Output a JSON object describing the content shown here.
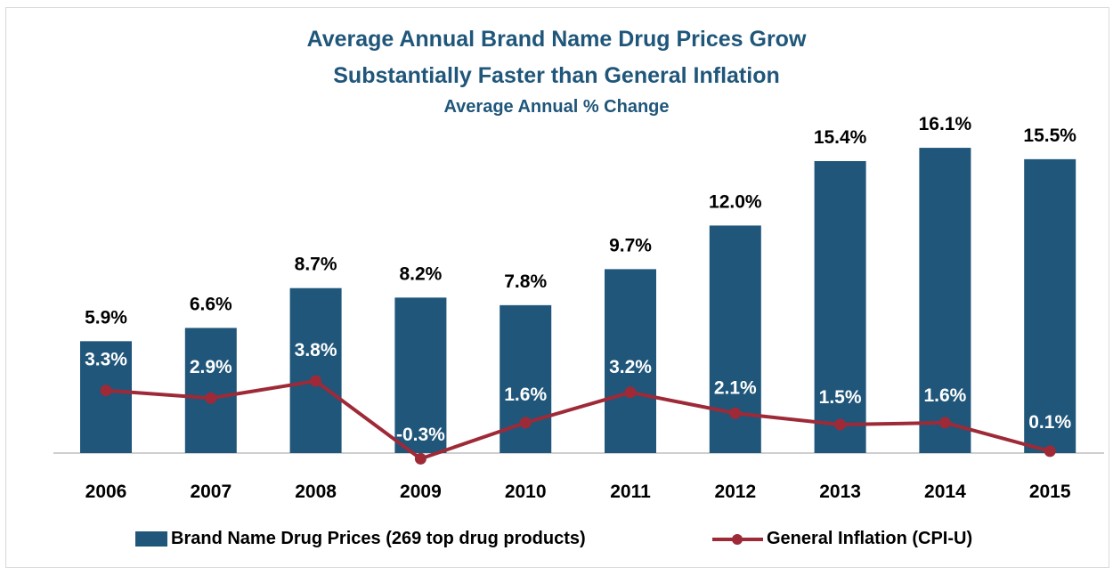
{
  "colors": {
    "bar": "#1f567a",
    "line": "#9e2a38",
    "title": "#1f567a",
    "axis": "#bfbfbf",
    "label_dark": "#000000",
    "label_light": "#ffffff"
  },
  "chart_data": {
    "type": "bar",
    "title": "Average Annual Brand Name Drug Prices Grow",
    "title_line2": "Substantially Faster than General Inflation",
    "subtitle": "Average Annual % Change",
    "categories": [
      "2006",
      "2007",
      "2008",
      "2009",
      "2010",
      "2011",
      "2012",
      "2013",
      "2014",
      "2015"
    ],
    "series": [
      {
        "name": "Brand Name Drug Prices (269 top drug products)",
        "type": "bar",
        "values": [
          5.9,
          6.6,
          8.7,
          8.2,
          7.8,
          9.7,
          12.0,
          15.4,
          16.1,
          15.5
        ],
        "labels": [
          "5.9%",
          "6.6%",
          "8.7%",
          "8.2%",
          "7.8%",
          "9.7%",
          "12.0%",
          "15.4%",
          "16.1%",
          "15.5%"
        ]
      },
      {
        "name": "General Inflation (CPI-U)",
        "type": "line",
        "values": [
          3.3,
          2.9,
          3.8,
          -0.3,
          1.6,
          3.2,
          2.1,
          1.5,
          1.6,
          0.1
        ],
        "labels": [
          "3.3%",
          "2.9%",
          "3.8%",
          "-0.3%",
          "1.6%",
          "3.2%",
          "2.1%",
          "1.5%",
          "1.6%",
          "0.1%"
        ]
      }
    ],
    "ylim": [
      -0.3,
      16.1
    ],
    "grid": false,
    "legend_position": "bottom"
  }
}
